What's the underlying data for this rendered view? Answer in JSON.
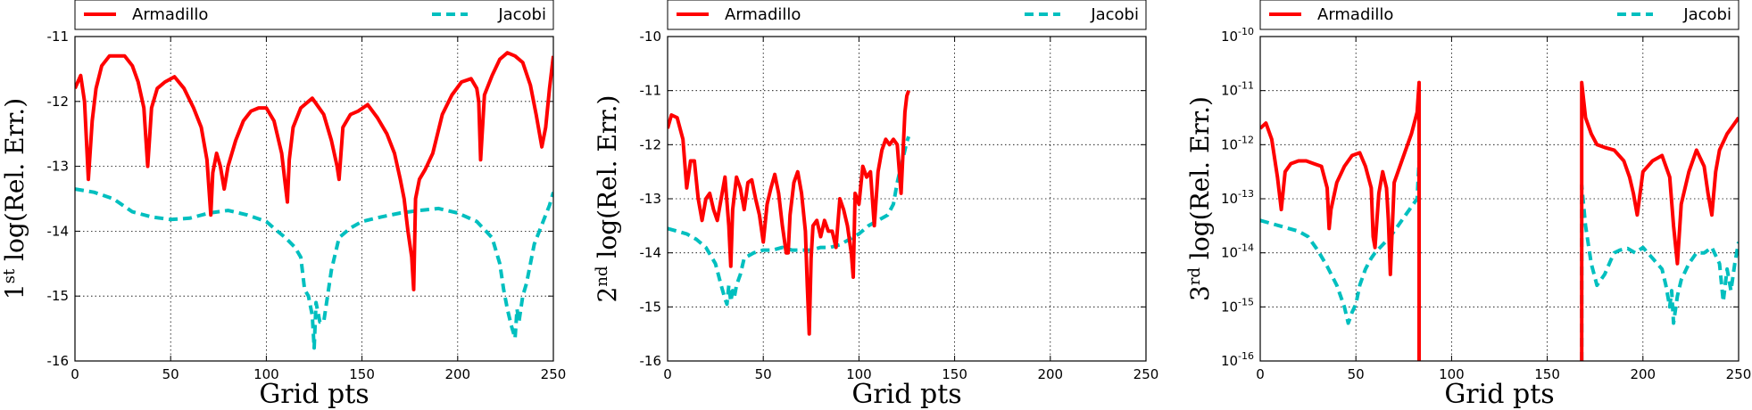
{
  "chart_data": [
    {
      "type": "line",
      "xlabel": "Grid pts",
      "ylabel": {
        "prefix": "1",
        "sup": "st",
        "main": " log(Rel. Err.)"
      },
      "xlim": [
        0,
        250
      ],
      "ylim": [
        -16,
        -11
      ],
      "yscale": "linear",
      "xticks": [
        "0",
        "50",
        "100",
        "150",
        "200",
        "250"
      ],
      "yticks": [
        "-11",
        "-12",
        "-13",
        "-14",
        "-15",
        "-16"
      ],
      "grid": true,
      "legend": "top",
      "series": [
        {
          "name": "Armadillo",
          "color": "#ff0000",
          "style": "solid",
          "x": [
            0,
            3,
            5,
            7,
            9,
            11,
            14,
            18,
            22,
            26,
            30,
            33,
            36,
            38,
            40,
            43,
            47,
            52,
            57,
            62,
            66,
            69,
            71,
            72,
            74,
            76,
            78,
            80,
            84,
            88,
            92,
            96,
            100,
            104,
            108,
            110,
            111,
            112,
            114,
            118,
            124,
            130,
            134,
            137,
            138,
            140,
            144,
            148,
            153,
            158,
            163,
            167,
            170,
            172,
            174,
            176,
            177,
            178,
            180,
            183,
            187,
            192,
            197,
            202,
            207,
            210,
            211,
            212,
            214,
            218,
            222,
            226,
            230,
            234,
            238,
            241,
            244,
            246,
            248,
            250
          ],
          "y": [
            -11.8,
            -11.6,
            -12.0,
            -13.2,
            -12.3,
            -11.8,
            -11.45,
            -11.3,
            -11.3,
            -11.3,
            -11.45,
            -11.7,
            -12.1,
            -13.0,
            -12.1,
            -11.8,
            -11.7,
            -11.62,
            -11.8,
            -12.1,
            -12.4,
            -12.9,
            -13.75,
            -13.1,
            -12.8,
            -13.0,
            -13.35,
            -13.0,
            -12.6,
            -12.3,
            -12.15,
            -12.1,
            -12.1,
            -12.3,
            -12.8,
            -13.3,
            -13.55,
            -12.9,
            -12.4,
            -12.1,
            -11.95,
            -12.2,
            -12.6,
            -13.0,
            -13.2,
            -12.4,
            -12.2,
            -12.15,
            -12.05,
            -12.25,
            -12.5,
            -12.8,
            -13.2,
            -13.5,
            -14.0,
            -14.4,
            -14.9,
            -13.5,
            -13.2,
            -13.05,
            -12.8,
            -12.2,
            -11.9,
            -11.7,
            -11.65,
            -11.8,
            -12.0,
            -12.9,
            -11.9,
            -11.6,
            -11.35,
            -11.25,
            -11.3,
            -11.4,
            -11.75,
            -12.2,
            -12.7,
            -12.4,
            -11.8,
            -11.3
          ]
        },
        {
          "name": "Jacobi",
          "color": "#00bfbf",
          "style": "dashed",
          "x": [
            0,
            10,
            20,
            30,
            40,
            50,
            60,
            70,
            80,
            90,
            100,
            105,
            110,
            115,
            118,
            120,
            122,
            124,
            125,
            126,
            128,
            130,
            132,
            134,
            138,
            144,
            150,
            160,
            170,
            180,
            190,
            200,
            210,
            218,
            222,
            224,
            226,
            228,
            230,
            231,
            232,
            234,
            236,
            240,
            244,
            248,
            250
          ],
          "y": [
            -13.35,
            -13.4,
            -13.5,
            -13.7,
            -13.78,
            -13.82,
            -13.8,
            -13.72,
            -13.68,
            -13.75,
            -13.85,
            -13.98,
            -14.1,
            -14.25,
            -14.4,
            -14.9,
            -15.0,
            -15.3,
            -15.8,
            -15.1,
            -15.4,
            -15.4,
            -15.0,
            -14.6,
            -14.1,
            -13.95,
            -13.85,
            -13.78,
            -13.72,
            -13.68,
            -13.65,
            -13.72,
            -13.85,
            -14.1,
            -14.5,
            -14.9,
            -15.2,
            -15.45,
            -15.65,
            -15.2,
            -15.4,
            -15.0,
            -14.8,
            -14.2,
            -13.9,
            -13.6,
            -13.4
          ]
        }
      ]
    },
    {
      "type": "line",
      "xlabel": "Grid pts",
      "ylabel": {
        "prefix": "2",
        "sup": "nd",
        "main": " log(Rel. Err.)"
      },
      "xlim": [
        0,
        250
      ],
      "ylim": [
        -16,
        -10
      ],
      "yscale": "linear",
      "xticks": [
        "0",
        "50",
        "100",
        "150",
        "200",
        "250"
      ],
      "yticks": [
        "-10",
        "-11",
        "-12",
        "-13",
        "-14",
        "-15",
        "-16"
      ],
      "grid": true,
      "legend": "top",
      "series": [
        {
          "name": "Armadillo",
          "color": "#ff0000",
          "style": "solid",
          "x": [
            0,
            2,
            5,
            8,
            10,
            12,
            14,
            16,
            18,
            20,
            22,
            24,
            26,
            28,
            30,
            32,
            33,
            34,
            36,
            38,
            40,
            42,
            44,
            46,
            48,
            50,
            52,
            54,
            56,
            58,
            60,
            62,
            63,
            64,
            66,
            68,
            70,
            72,
            73,
            74,
            75,
            76,
            78,
            80,
            82,
            84,
            86,
            88,
            90,
            92,
            94,
            96,
            97,
            98,
            100,
            102,
            104,
            106,
            108,
            110,
            112,
            114,
            116,
            118,
            120,
            122,
            124,
            125,
            126
          ],
          "y": [
            -11.7,
            -11.45,
            -11.5,
            -11.9,
            -12.8,
            -12.3,
            -12.3,
            -13.0,
            -13.4,
            -13.0,
            -12.9,
            -13.2,
            -13.4,
            -13.0,
            -12.6,
            -13.5,
            -14.25,
            -13.2,
            -12.6,
            -12.8,
            -13.2,
            -12.7,
            -12.65,
            -13.0,
            -13.3,
            -13.8,
            -13.1,
            -12.8,
            -12.55,
            -12.9,
            -13.5,
            -14.0,
            -14.0,
            -13.3,
            -12.7,
            -12.5,
            -12.9,
            -13.6,
            -14.6,
            -15.5,
            -14.1,
            -13.5,
            -13.4,
            -13.7,
            -13.4,
            -13.6,
            -13.6,
            -13.9,
            -13.0,
            -13.2,
            -13.5,
            -14.0,
            -14.45,
            -12.9,
            -13.1,
            -12.4,
            -12.6,
            -12.5,
            -13.5,
            -12.5,
            -12.1,
            -11.9,
            -12.0,
            -11.9,
            -12.0,
            -12.9,
            -11.4,
            -11.1,
            -11.0
          ]
        },
        {
          "name": "Jacobi",
          "color": "#00bfbf",
          "style": "dashed",
          "x": [
            0,
            5,
            10,
            15,
            20,
            25,
            28,
            30,
            31,
            32,
            33,
            34,
            35,
            36,
            38,
            40,
            45,
            50,
            55,
            60,
            65,
            70,
            75,
            80,
            85,
            90,
            95,
            100,
            105,
            110,
            115,
            118,
            120,
            122,
            124,
            125,
            126
          ],
          "y": [
            -13.55,
            -13.6,
            -13.65,
            -13.75,
            -13.9,
            -14.2,
            -14.6,
            -14.85,
            -14.95,
            -14.6,
            -14.9,
            -14.7,
            -14.8,
            -14.6,
            -14.4,
            -14.1,
            -14.0,
            -13.95,
            -13.95,
            -13.9,
            -13.95,
            -13.95,
            -13.95,
            -13.9,
            -13.9,
            -13.85,
            -13.75,
            -13.65,
            -13.5,
            -13.4,
            -13.3,
            -13.1,
            -12.7,
            -12.4,
            -12.1,
            -11.95,
            -11.85
          ]
        }
      ]
    },
    {
      "type": "line",
      "xlabel": "Grid pts",
      "ylabel": {
        "prefix": "3",
        "sup": "rd",
        "main": " log(Rel. Err.)"
      },
      "xlim": [
        0,
        250
      ],
      "ylim": [
        -16,
        -10
      ],
      "yscale": "log",
      "xticks": [
        "0",
        "50",
        "100",
        "150",
        "200",
        "250"
      ],
      "yticks": [
        {
          "base": "10",
          "exp": "-10"
        },
        {
          "base": "10",
          "exp": "-11"
        },
        {
          "base": "10",
          "exp": "-12"
        },
        {
          "base": "10",
          "exp": "-13"
        },
        {
          "base": "10",
          "exp": "-14"
        },
        {
          "base": "10",
          "exp": "-15"
        },
        {
          "base": "10",
          "exp": "-16"
        }
      ],
      "grid": true,
      "legend": "top",
      "series": [
        {
          "name": "Armadillo",
          "color": "#ff0000",
          "style": "solid",
          "x": [
            0,
            3,
            6,
            9,
            11,
            13,
            16,
            20,
            24,
            28,
            32,
            35,
            36,
            37,
            40,
            44,
            48,
            52,
            55,
            58,
            59,
            60,
            62,
            64,
            66,
            67,
            68,
            70,
            73,
            76,
            79,
            82,
            83,
            83,
            null,
            168,
            168,
            170,
            173,
            176,
            180,
            185,
            190,
            193,
            195,
            197,
            200,
            205,
            210,
            214,
            216,
            218,
            220,
            224,
            228,
            232,
            234,
            236,
            238,
            240,
            244,
            248,
            250
          ],
          "y": [
            -11.7,
            -11.6,
            -11.9,
            -12.6,
            -13.2,
            -12.5,
            -12.35,
            -12.3,
            -12.3,
            -12.35,
            -12.4,
            -12.8,
            -13.55,
            -13.2,
            -12.7,
            -12.4,
            -12.2,
            -12.15,
            -12.4,
            -12.8,
            -13.7,
            -13.9,
            -12.9,
            -12.5,
            -12.8,
            -13.4,
            -14.4,
            -12.7,
            -12.4,
            -12.1,
            -11.8,
            -11.4,
            -10.85,
            -16,
            null,
            -16,
            -10.85,
            -11.5,
            -11.8,
            -12.0,
            -12.05,
            -12.1,
            -12.3,
            -12.6,
            -12.9,
            -13.3,
            -12.5,
            -12.3,
            -12.2,
            -12.6,
            -13.5,
            -14.2,
            -13.1,
            -12.5,
            -12.1,
            -12.4,
            -12.9,
            -13.3,
            -12.5,
            -12.1,
            -11.8,
            -11.6,
            -11.5
          ]
        },
        {
          "name": "Jacobi",
          "color": "#00bfbf",
          "style": "dashed",
          "x": [
            0,
            5,
            10,
            15,
            20,
            25,
            30,
            35,
            40,
            44,
            46,
            47,
            48,
            50,
            52,
            55,
            58,
            60,
            64,
            68,
            72,
            76,
            80,
            82,
            83,
            83,
            null,
            168,
            168,
            170,
            173,
            176,
            180,
            183,
            185,
            188,
            192,
            196,
            200,
            205,
            210,
            212,
            214,
            215,
            216,
            218,
            220,
            224,
            228,
            232,
            236,
            240,
            242,
            244,
            246,
            248,
            250
          ],
          "y": [
            -13.4,
            -13.45,
            -13.5,
            -13.55,
            -13.6,
            -13.7,
            -13.95,
            -14.25,
            -14.6,
            -15.0,
            -15.3,
            -15.2,
            -15.1,
            -14.95,
            -14.6,
            -14.3,
            -14.1,
            -14.0,
            -13.85,
            -13.7,
            -13.5,
            -13.3,
            -13.1,
            -13.0,
            -12.3,
            -16,
            null,
            -16,
            -12.75,
            -13.5,
            -14.2,
            -14.6,
            -14.4,
            -14.15,
            -14.0,
            -13.95,
            -13.92,
            -14.0,
            -13.9,
            -14.1,
            -14.3,
            -14.6,
            -15.0,
            -14.7,
            -15.3,
            -14.8,
            -14.5,
            -14.2,
            -14.0,
            -14.0,
            -13.9,
            -14.2,
            -14.9,
            -14.3,
            -14.7,
            -14.2,
            -13.8
          ]
        }
      ]
    }
  ]
}
